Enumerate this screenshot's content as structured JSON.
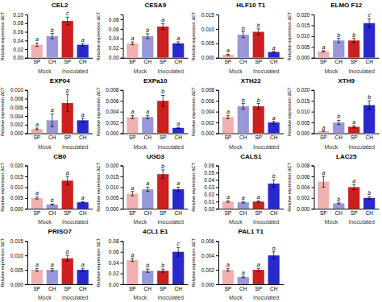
{
  "chart_data": [
    {
      "type": "bar",
      "title": "CEL2",
      "ylabel": "Relative expression ΔCT",
      "categories": [
        "SP",
        "CH",
        "SP",
        "CH"
      ],
      "group_labels": [
        "Mock",
        "Inoculated"
      ],
      "values": [
        0.03,
        0.05,
        0.085,
        0.03
      ],
      "errors": [
        0.004,
        0.006,
        0.009,
        0.003
      ],
      "annotations": [
        "a",
        "b",
        "c",
        "a"
      ],
      "colors": [
        "#f0b0b0",
        "#9898d8",
        "#cc2020",
        "#2828cc"
      ],
      "ylim": [
        0,
        0.1
      ],
      "yticks": [
        {
          "value": 0,
          "label": "0.00"
        },
        0.02,
        0.04,
        0.06,
        0.08,
        {
          "value": 0.1,
          "label": "0.10"
        }
      ]
    },
    {
      "type": "bar",
      "title": "CESA9",
      "ylabel": "Relative expression ΔCT",
      "categories": [
        "SP",
        "CH",
        "SP",
        "CH"
      ],
      "group_labels": [
        "Mock",
        "Inoculated"
      ],
      "values": [
        0.03,
        0.045,
        0.065,
        0.03
      ],
      "errors": [
        0.003,
        0.005,
        0.006,
        0.003
      ],
      "annotations": [
        "a",
        "b",
        "a",
        "a"
      ],
      "colors": [
        "#f0b0b0",
        "#9898d8",
        "#cc2020",
        "#2828cc"
      ],
      "ylim": [
        0,
        0.09
      ],
      "yticks": [
        {
          "value": 0,
          "label": "0.00"
        },
        0.02,
        0.04,
        0.06,
        0.08
      ]
    },
    {
      "type": "bar",
      "title": "HLF10 T1",
      "ylabel": "Relative expression ΔCT",
      "categories": [
        "SP",
        "CH",
        "SP",
        "CH"
      ],
      "group_labels": [
        "Mock",
        "Inoculated"
      ],
      "values": [
        0.001,
        0.008,
        0.009,
        0.002
      ],
      "errors": [
        0.0002,
        0.001,
        0.001,
        0.0003
      ],
      "annotations": [
        "a",
        "b",
        "b",
        "a"
      ],
      "colors": [
        "#f0b0b0",
        "#9898d8",
        "#cc2020",
        "#2828cc"
      ],
      "ylim": [
        0,
        0.015
      ],
      "yticks": [
        {
          "value": 0,
          "label": "0.000"
        },
        0.005,
        {
          "value": 0.01,
          "label": "0.010"
        },
        0.015
      ]
    },
    {
      "type": "bar",
      "title": "ELMO F12",
      "ylabel": "Relative expression ΔCT",
      "categories": [
        "SP",
        "CH",
        "SP",
        "CH"
      ],
      "group_labels": [
        "Mock",
        "Inoculated"
      ],
      "values": [
        0.003,
        0.008,
        0.008,
        0.016
      ],
      "errors": [
        0.0003,
        0.001,
        0.001,
        0.002
      ],
      "annotations": [
        "a",
        "b",
        "b",
        "c"
      ],
      "colors": [
        "#f0b0b0",
        "#9898d8",
        "#cc2020",
        "#2828cc"
      ],
      "ylim": [
        0,
        0.02
      ],
      "yticks": [
        {
          "value": 0,
          "label": "0.000"
        },
        0.005,
        {
          "value": 0.01,
          "label": "0.010"
        },
        0.015,
        {
          "value": 0.02,
          "label": "0.020"
        }
      ]
    },
    {
      "type": "bar",
      "title": "EXP04",
      "ylabel": "Relative expression ΔCT",
      "categories": [
        "SP",
        "CH",
        "SP",
        "CH"
      ],
      "group_labels": [
        "Mock",
        "Inoculated"
      ],
      "values": [
        0.001,
        0.003,
        0.007,
        0.003
      ],
      "errors": [
        0.0002,
        0.0015,
        0.002,
        0.0005
      ],
      "annotations": [
        "a",
        "a",
        "b",
        "a"
      ],
      "colors": [
        "#f0b0b0",
        "#9898d8",
        "#cc2020",
        "#2828cc"
      ],
      "ylim": [
        0,
        0.01
      ],
      "yticks": [
        {
          "value": 0,
          "label": "0.000"
        },
        0.002,
        0.004,
        0.006,
        0.008,
        {
          "value": 0.01,
          "label": "0.010"
        }
      ]
    },
    {
      "type": "bar",
      "title": "EXPa10",
      "ylabel": "Relative expression ΔCT",
      "categories": [
        "SP",
        "CH",
        "SP",
        "CH"
      ],
      "group_labels": [
        "Mock",
        "Inoculated"
      ],
      "values": [
        0.003,
        0.003,
        0.006,
        0.001
      ],
      "errors": [
        0.0003,
        0.0003,
        0.001,
        0.0001
      ],
      "annotations": [
        "a",
        "a",
        "b",
        "a"
      ],
      "colors": [
        "#f0b0b0",
        "#9898d8",
        "#cc2020",
        "#2828cc"
      ],
      "ylim": [
        0,
        0.008
      ],
      "yticks": [
        {
          "value": 0,
          "label": "0.000"
        },
        0.002,
        0.004,
        0.006,
        0.008
      ]
    },
    {
      "type": "bar",
      "title": "XTH22",
      "ylabel": "Relative expression ΔCT",
      "categories": [
        "SP",
        "CH",
        "SP",
        "CH"
      ],
      "group_labels": [
        "Mock",
        "Inoculated"
      ],
      "values": [
        0.003,
        0.005,
        0.005,
        0.002
      ],
      "errors": [
        0.0003,
        0.0005,
        0.0005,
        0.0002
      ],
      "annotations": [
        "a",
        "b",
        "b",
        "a"
      ],
      "colors": [
        "#f0b0b0",
        "#9898d8",
        "#cc2020",
        "#2828cc"
      ],
      "ylim": [
        0,
        0.008
      ],
      "yticks": [
        {
          "value": 0,
          "label": "0.000"
        },
        0.002,
        0.004,
        0.006,
        0.008
      ]
    },
    {
      "type": "bar",
      "title": "XTH9",
      "ylabel": "Relative expression ΔCT",
      "categories": [
        "SP",
        "CH",
        "SP",
        "CH"
      ],
      "group_labels": [
        "Mock",
        "Inoculated"
      ],
      "values": [
        0.001,
        0.005,
        0.003,
        0.013
      ],
      "errors": [
        0.0001,
        0.001,
        0.0005,
        0.002
      ],
      "annotations": [
        "a",
        "b",
        "a",
        "b"
      ],
      "colors": [
        "#f0b0b0",
        "#9898d8",
        "#cc2020",
        "#2828cc"
      ],
      "ylim": [
        0,
        0.02
      ],
      "yticks": [
        {
          "value": 0,
          "label": "0.000"
        },
        0.005,
        {
          "value": 0.01,
          "label": "0.010"
        },
        0.015,
        {
          "value": 0.02,
          "label": "0.020"
        }
      ]
    },
    {
      "type": "bar",
      "title": "CB0",
      "ylabel": "Relative expression ΔCT",
      "categories": [
        "SP",
        "CH",
        "SP",
        "CH"
      ],
      "group_labels": [
        "Mock",
        "Inoculated"
      ],
      "values": [
        0.005,
        0.002,
        0.013,
        0.003
      ],
      "errors": [
        0.0005,
        0.0002,
        0.002,
        0.0003
      ],
      "annotations": [
        "a",
        "b",
        "a",
        "a"
      ],
      "colors": [
        "#f0b0b0",
        "#9898d8",
        "#cc2020",
        "#2828cc"
      ],
      "ylim": [
        0,
        0.02
      ],
      "yticks": [
        {
          "value": 0,
          "label": "0.000"
        },
        0.005,
        {
          "value": 0.01,
          "label": "0.010"
        },
        0.015,
        {
          "value": 0.02,
          "label": "0.020"
        }
      ]
    },
    {
      "type": "bar",
      "title": "UGD3",
      "ylabel": "Relative expression ΔCT",
      "categories": [
        "SP",
        "CH",
        "SP",
        "CH"
      ],
      "group_labels": [
        "Mock",
        "Inoculated"
      ],
      "values": [
        0.007,
        0.009,
        0.016,
        0.009
      ],
      "errors": [
        0.001,
        0.001,
        0.002,
        0.001
      ],
      "annotations": [
        "a",
        "a",
        "b",
        "a"
      ],
      "colors": [
        "#f0b0b0",
        "#9898d8",
        "#cc2020",
        "#2828cc"
      ],
      "ylim": [
        0,
        0.02
      ],
      "yticks": [
        {
          "value": 0,
          "label": "0.000"
        },
        0.005,
        {
          "value": 0.01,
          "label": "0.010"
        },
        0.015,
        {
          "value": 0.02,
          "label": "0.020"
        }
      ]
    },
    {
      "type": "bar",
      "title": "CALS1",
      "ylabel": "Relative expression ΔCT",
      "categories": [
        "SP",
        "CH",
        "SP",
        "CH"
      ],
      "group_labels": [
        "Mock",
        "Inoculated"
      ],
      "values": [
        0.01,
        0.009,
        0.01,
        0.035
      ],
      "errors": [
        0.001,
        0.001,
        0.001,
        0.005
      ],
      "annotations": [
        "a",
        "a",
        "a",
        "b"
      ],
      "colors": [
        "#f0b0b0",
        "#9898d8",
        "#cc2020",
        "#2828cc"
      ],
      "ylim": [
        0,
        0.06
      ],
      "yticks": [
        {
          "value": 0,
          "label": "0.00"
        },
        0.01,
        0.02,
        0.03,
        0.04,
        0.05,
        0.06
      ]
    },
    {
      "type": "bar",
      "title": "LAC25",
      "ylabel": "Relative expression ΔCT",
      "categories": [
        "SP",
        "CH",
        "SP",
        "CH"
      ],
      "group_labels": [
        "Mock",
        "Inoculated"
      ],
      "values": [
        0.005,
        0.001,
        0.004,
        0.002
      ],
      "errors": [
        0.001,
        0.0001,
        0.0005,
        0.0002
      ],
      "annotations": [
        "a",
        "b",
        "a",
        "b"
      ],
      "colors": [
        "#f0b0b0",
        "#9898d8",
        "#cc2020",
        "#2828cc"
      ],
      "ylim": [
        0,
        0.008
      ],
      "yticks": [
        {
          "value": 0,
          "label": "0.000"
        },
        0.002,
        0.004,
        0.006,
        0.008
      ]
    },
    {
      "type": "bar",
      "title": "PRISO7",
      "ylabel": "Relative expression ΔCT",
      "categories": [
        "SP",
        "CH",
        "SP",
        "CH"
      ],
      "group_labels": [
        "Mock",
        "Inoculated"
      ],
      "values": [
        0.005,
        0.005,
        0.009,
        0.005
      ],
      "errors": [
        0.0005,
        0.0005,
        0.001,
        0.0005
      ],
      "annotations": [
        "a",
        "a",
        "b",
        "a"
      ],
      "colors": [
        "#f0b0b0",
        "#9898d8",
        "#cc2020",
        "#2828cc"
      ],
      "ylim": [
        0,
        0.015
      ],
      "yticks": [
        {
          "value": 0,
          "label": "0.000"
        },
        0.005,
        {
          "value": 0.01,
          "label": "0.010"
        },
        0.015
      ]
    },
    {
      "type": "bar",
      "title": "4CL1 E1",
      "ylabel": "Relative expression ΔCT",
      "categories": [
        "SP",
        "CH",
        "SP",
        "CH"
      ],
      "group_labels": [
        "Mock",
        "Inoculated"
      ],
      "values": [
        0.045,
        0.025,
        0.025,
        0.06
      ],
      "errors": [
        0.003,
        0.003,
        0.003,
        0.008
      ],
      "annotations": [
        "a",
        "b",
        "b",
        "c"
      ],
      "colors": [
        "#f0b0b0",
        "#9898d8",
        "#cc2020",
        "#2828cc"
      ],
      "ylim": [
        0,
        0.08
      ],
      "yticks": [
        {
          "value": 0,
          "label": "0.00"
        },
        0.02,
        0.04,
        0.06,
        0.08
      ]
    },
    {
      "type": "bar",
      "title": "PAL1 T1",
      "ylabel": "Relative expression ΔCT",
      "categories": [
        "SP",
        "CH",
        "SP",
        "CH"
      ],
      "group_labels": [
        "Mock",
        "Inoculated"
      ],
      "values": [
        0.002,
        0.001,
        0.002,
        0.004
      ],
      "errors": [
        0.0002,
        0.0001,
        0.0002,
        0.0005
      ],
      "annotations": [
        "a",
        "a",
        "a",
        "b"
      ],
      "colors": [
        "#f0b0b0",
        "#9898d8",
        "#cc2020",
        "#2828cc"
      ],
      "ylim": [
        0,
        0.006
      ],
      "yticks": [
        {
          "value": 0,
          "label": "0.000"
        },
        0.002,
        0.004,
        0.006
      ]
    }
  ]
}
